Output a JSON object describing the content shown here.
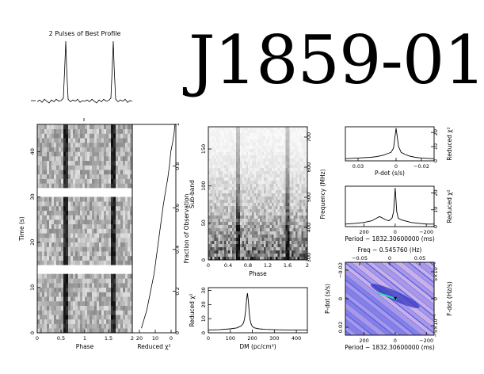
{
  "pulsar_name": "J1859-01",
  "colors": {
    "ink": "#000000",
    "dm_bg": "#5a63e6",
    "dm_light": "#e7c4ea",
    "fit_line": "#2ee0a0"
  },
  "chart_data": [
    {
      "id": "profile",
      "type": "line",
      "title": "2 Pulses of Best Profile",
      "x": [
        0.0,
        0.05,
        0.1,
        0.15,
        0.2,
        0.25,
        0.3,
        0.35,
        0.4,
        0.45,
        0.5,
        0.55,
        0.58,
        0.6,
        0.62,
        0.65,
        0.7,
        0.75,
        0.8,
        0.85,
        0.9,
        0.95,
        1.0,
        1.05,
        1.1,
        1.15,
        1.2,
        1.25,
        1.3,
        1.35,
        1.4,
        1.45,
        1.5,
        1.55,
        1.58,
        1.6,
        1.62,
        1.65,
        1.7,
        1.75,
        1.8,
        1.85,
        1.9,
        1.95,
        2.0
      ],
      "y": [
        0.02,
        0.05,
        0.01,
        0.06,
        0.03,
        0.0,
        0.05,
        0.02,
        0.06,
        0.03,
        0.04,
        0.08,
        0.6,
        1.0,
        0.55,
        0.06,
        0.02,
        0.05,
        0.03,
        0.06,
        0.01,
        0.04,
        0.03,
        0.05,
        0.02,
        0.06,
        0.03,
        0.0,
        0.05,
        0.02,
        0.06,
        0.03,
        0.04,
        0.08,
        0.6,
        1.0,
        0.55,
        0.06,
        0.02,
        0.05,
        0.03,
        0.06,
        0.01,
        0.04,
        0.03
      ]
    },
    {
      "id": "time-phase",
      "type": "heatmap",
      "xlabel": "Phase",
      "ylabel": "Time (s)",
      "right_label": "Fraction of Observation",
      "xticks": [
        "0",
        "0.5",
        "1",
        "1.5",
        "2"
      ],
      "yticks": [
        "0",
        "10",
        "20",
        "30",
        "40"
      ],
      "right_ticks": [
        "0",
        "0.2",
        "0.4",
        "0.6",
        "0.8",
        "1"
      ],
      "xlim": [
        0,
        2
      ],
      "ylim": [
        0,
        46
      ],
      "pulse_phases": [
        0.6,
        1.6
      ],
      "gaps_s": [
        [
          13,
          14.5
        ],
        [
          30,
          31.5
        ]
      ]
    },
    {
      "id": "chi2-time",
      "type": "line",
      "xlabel": "Reduced χ²",
      "xticks": [
        "20",
        "10",
        "0"
      ],
      "xlim": [
        24,
        0
      ],
      "x": [
        0.5,
        1.0,
        1.8,
        2.8,
        3.5,
        4.5,
        5.8,
        7.0,
        8.0,
        9.0,
        10.0,
        11.0,
        12.0,
        13.0,
        14.0,
        15.0,
        16.0,
        17.5,
        19.0
      ],
      "y": [
        46,
        44,
        42,
        40,
        37,
        34,
        31,
        28,
        25,
        22,
        19,
        16,
        13,
        11,
        9,
        7,
        5,
        3,
        1
      ]
    },
    {
      "id": "subband",
      "type": "heatmap",
      "xlabel": "Phase",
      "ylabel": "Sub-band",
      "right_label": "Frequency (MHz)",
      "xticks": [
        "0",
        "0.4",
        "0.8",
        "1.2",
        "1.6",
        "2"
      ],
      "yticks": [
        "0",
        "50",
        "100",
        "150"
      ],
      "right_ticks": [
        "300",
        "400",
        "500",
        "600",
        "700"
      ],
      "xlim": [
        0,
        2
      ],
      "ylim": [
        0,
        180
      ],
      "pulse_phases": [
        0.6,
        1.6
      ]
    },
    {
      "id": "dm-curve",
      "type": "line",
      "xlabel": "DM (pc/cm³)",
      "ylabel": "Reduced χ²",
      "xticks": [
        "0",
        "100",
        "200",
        "300",
        "400"
      ],
      "yticks": [
        "0",
        "10",
        "20",
        "30"
      ],
      "xlim": [
        0,
        450
      ],
      "ylim": [
        0,
        32
      ],
      "x": [
        0,
        50,
        100,
        130,
        150,
        160,
        165,
        170,
        174,
        178,
        182,
        186,
        190,
        195,
        200,
        210,
        230,
        260,
        300,
        350,
        400,
        450
      ],
      "y": [
        2,
        2.2,
        2.8,
        3.5,
        5,
        7,
        10,
        16,
        24,
        28,
        22,
        14,
        9,
        6,
        4.5,
        3.5,
        2.8,
        2.4,
        2.2,
        2,
        2,
        2
      ]
    },
    {
      "id": "pdot",
      "type": "line",
      "xlabel": "P-dot (s/s)",
      "ylabel": "Reduced χ²",
      "xticks": [
        "0.03",
        "0",
        "−0.02"
      ],
      "yticks": [
        "0",
        "10",
        "20"
      ],
      "xlim": [
        0.04,
        -0.03
      ],
      "ylim": [
        0,
        24
      ],
      "x": [
        0.04,
        0.03,
        0.02,
        0.015,
        0.01,
        0.007,
        0.004,
        0.002,
        0.0,
        -0.002,
        -0.004,
        -0.007,
        -0.01,
        -0.015,
        -0.02,
        -0.03
      ],
      "y": [
        1.5,
        2,
        2.5,
        3,
        4,
        5,
        6,
        9,
        23,
        10,
        6,
        4.5,
        3.5,
        2.5,
        2,
        1.5
      ]
    },
    {
      "id": "period",
      "type": "line",
      "xlabel": "Period − 1832.30600000 (ms)",
      "ylabel": "Reduced χ²",
      "xticks": [
        "200",
        "0",
        "−200"
      ],
      "yticks": [
        "0",
        "10",
        "20"
      ],
      "xlim": [
        320,
        -250
      ],
      "ylim": [
        0,
        24
      ],
      "x": [
        320,
        250,
        200,
        150,
        120,
        100,
        80,
        60,
        40,
        20,
        10,
        0,
        -10,
        -20,
        -40,
        -60,
        -80,
        -100,
        -150,
        -200,
        -250
      ],
      "y": [
        1.5,
        2,
        2.5,
        3.5,
        5,
        6,
        5,
        4,
        3.5,
        5,
        9,
        23,
        9,
        5,
        4,
        3.5,
        3,
        2.5,
        2,
        1.5,
        1.5
      ]
    },
    {
      "id": "p-pdot-plane",
      "type": "heatmap",
      "xlabel": "Period − 1832.30600000 (ms)",
      "ylabel": "P-dot (s/s)",
      "top_label": "Freq − 0.545760 (Hz)",
      "right_label": "F-dot (Hz/s)",
      "xticks": [
        "200",
        "0",
        "−200"
      ],
      "yticks": [
        "−0.02",
        "0",
        "0.02"
      ],
      "top_ticks": [
        "−0.05",
        "0",
        "0.05"
      ],
      "right_ticks": [
        "5×10⁻³",
        "0",
        "−5×10⁻³"
      ],
      "xlim": [
        320,
        -250
      ],
      "ylim": [
        0.035,
        -0.03
      ],
      "best_period": 0,
      "best_pdot": 0
    }
  ]
}
